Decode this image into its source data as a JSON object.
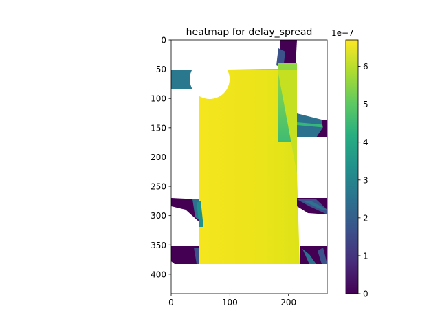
{
  "chart_data": {
    "type": "heatmap",
    "title": "heatmap for delay_spread",
    "xlabel": "",
    "ylabel": "",
    "x_ticks": [
      0,
      100,
      200
    ],
    "y_ticks": [
      0,
      50,
      100,
      150,
      200,
      250,
      300,
      350,
      400
    ],
    "xlim": [
      0,
      266
    ],
    "ylim": [
      433,
      0
    ],
    "colormap": "viridis",
    "colorbar": {
      "range": [
        0,
        6.7e-07
      ],
      "ticks": [
        0,
        1,
        2,
        3,
        4,
        5,
        6
      ],
      "offset_label": "1e−7"
    },
    "regions": [
      {
        "name": "main-bright-area",
        "value_range": [
          6e-07,
          6.6e-07
        ]
      },
      {
        "name": "upper-right-gradient",
        "value_range": [
          4.5e-07,
          6.3e-07
        ]
      },
      {
        "name": "upper-left-teal-strip",
        "value_range": [
          2.8e-07,
          3e-07
        ]
      },
      {
        "name": "low-value-fringes",
        "value_range": [
          0.0,
          1e-07
        ]
      },
      {
        "name": "mid-value-diagonals",
        "value_range": [
          2e-07,
          4.5e-07
        ]
      }
    ]
  },
  "colors": {
    "viridis_0": "#440154",
    "viridis_25": "#3b528b",
    "viridis_50": "#21918c",
    "viridis_75": "#5ec962",
    "viridis_100": "#fde725"
  }
}
